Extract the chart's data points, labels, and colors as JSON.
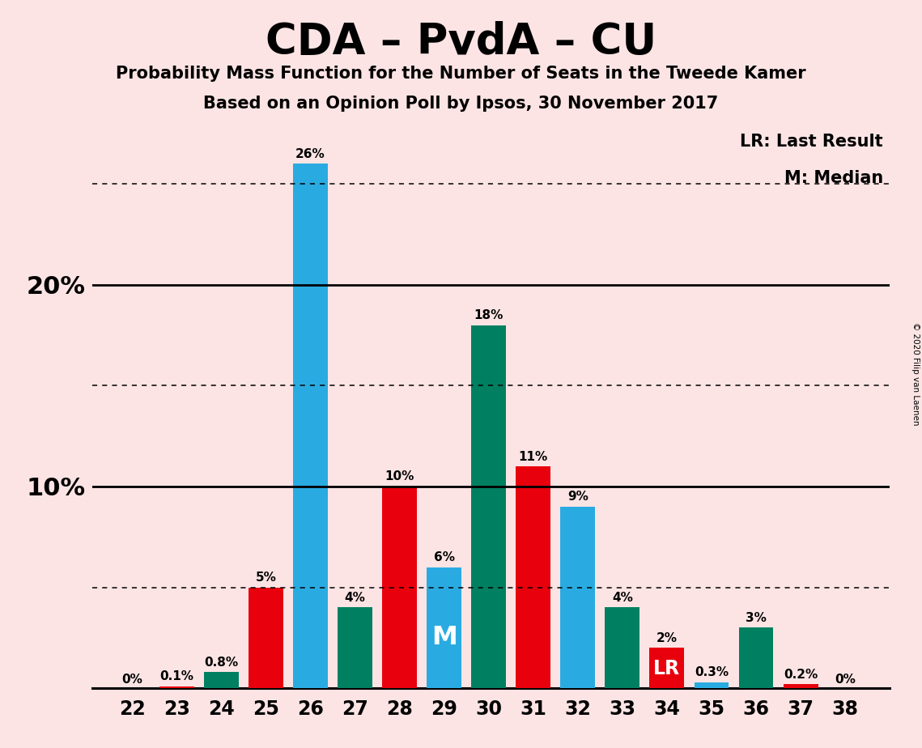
{
  "title": "CDA – PvdA – CU",
  "subtitle1": "Probability Mass Function for the Number of Seats in the Tweede Kamer",
  "subtitle2": "Based on an Opinion Poll by Ipsos, 30 November 2017",
  "copyright": "© 2020 Filip van Laenen",
  "seats": [
    22,
    23,
    24,
    25,
    26,
    27,
    28,
    29,
    30,
    31,
    32,
    33,
    34,
    35,
    36,
    37,
    38
  ],
  "values": [
    0.0,
    0.1,
    0.8,
    5.0,
    26.0,
    4.0,
    10.0,
    6.0,
    18.0,
    11.0,
    9.0,
    4.0,
    2.0,
    0.3,
    3.0,
    0.2,
    0.0
  ],
  "colors": [
    "#e8000d",
    "#e8000d",
    "#008060",
    "#e8000d",
    "#29abe2",
    "#008060",
    "#e8000d",
    "#29abe2",
    "#008060",
    "#e8000d",
    "#29abe2",
    "#008060",
    "#e8000d",
    "#29abe2",
    "#008060",
    "#e8000d",
    "#e8000d"
  ],
  "labels": [
    "0%",
    "0.1%",
    "0.8%",
    "5%",
    "26%",
    "4%",
    "10%",
    "6%",
    "18%",
    "11%",
    "9%",
    "4%",
    "2%",
    "0.3%",
    "3%",
    "0.2%",
    "0%"
  ],
  "median_seat": 29,
  "last_result_seat": 34,
  "background_color": "#fce4e4",
  "ylim_max": 28.0,
  "solid_lines": [
    10.0,
    20.0
  ],
  "dotted_lines": [
    5.0,
    15.0,
    25.0
  ],
  "legend_lr": "LR: Last Result",
  "legend_m": "M: Median",
  "bar_width": 0.78,
  "title_fontsize": 38,
  "subtitle_fontsize": 15,
  "label_fontsize": 11,
  "tick_fontsize": 17,
  "ytick_fontsize": 22,
  "legend_fontsize": 15,
  "copyright_fontsize": 7.5
}
